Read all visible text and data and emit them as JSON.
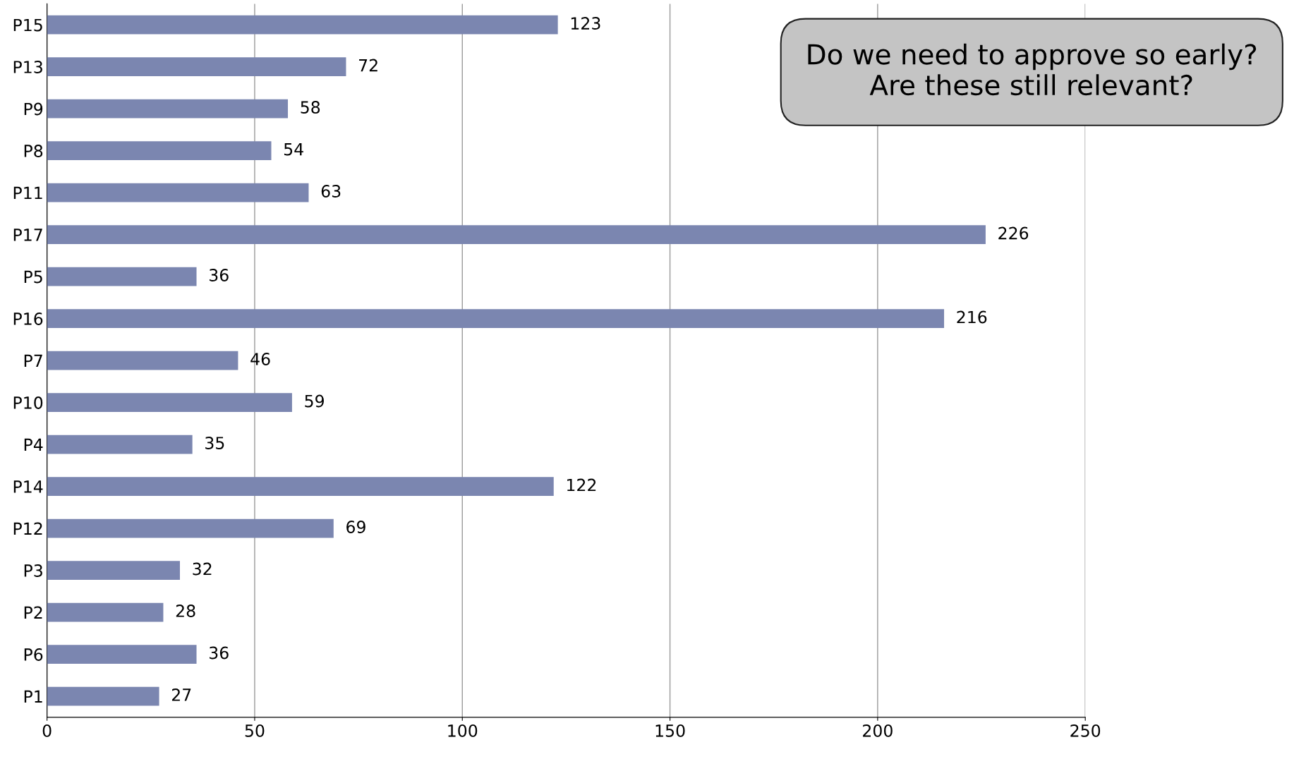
{
  "chart_data": {
    "type": "bar",
    "orientation": "horizontal",
    "categories": [
      "P15",
      "P13",
      "P9",
      "P8",
      "P11",
      "P17",
      "P5",
      "P16",
      "P7",
      "P10",
      "P4",
      "P14",
      "P12",
      "P3",
      "P2",
      "P6",
      "P1"
    ],
    "values": [
      123,
      72,
      58,
      54,
      63,
      226,
      36,
      216,
      46,
      59,
      35,
      122,
      69,
      32,
      28,
      36,
      27
    ],
    "color": "#7b86b0",
    "data_labels": true,
    "xlim": [
      0,
      250
    ],
    "xticks": [
      0,
      50,
      100,
      150,
      200,
      250
    ],
    "grid": "x",
    "legend": false,
    "annotations": [
      "Do we need to approve so early?\nAre these still relevant?"
    ]
  }
}
